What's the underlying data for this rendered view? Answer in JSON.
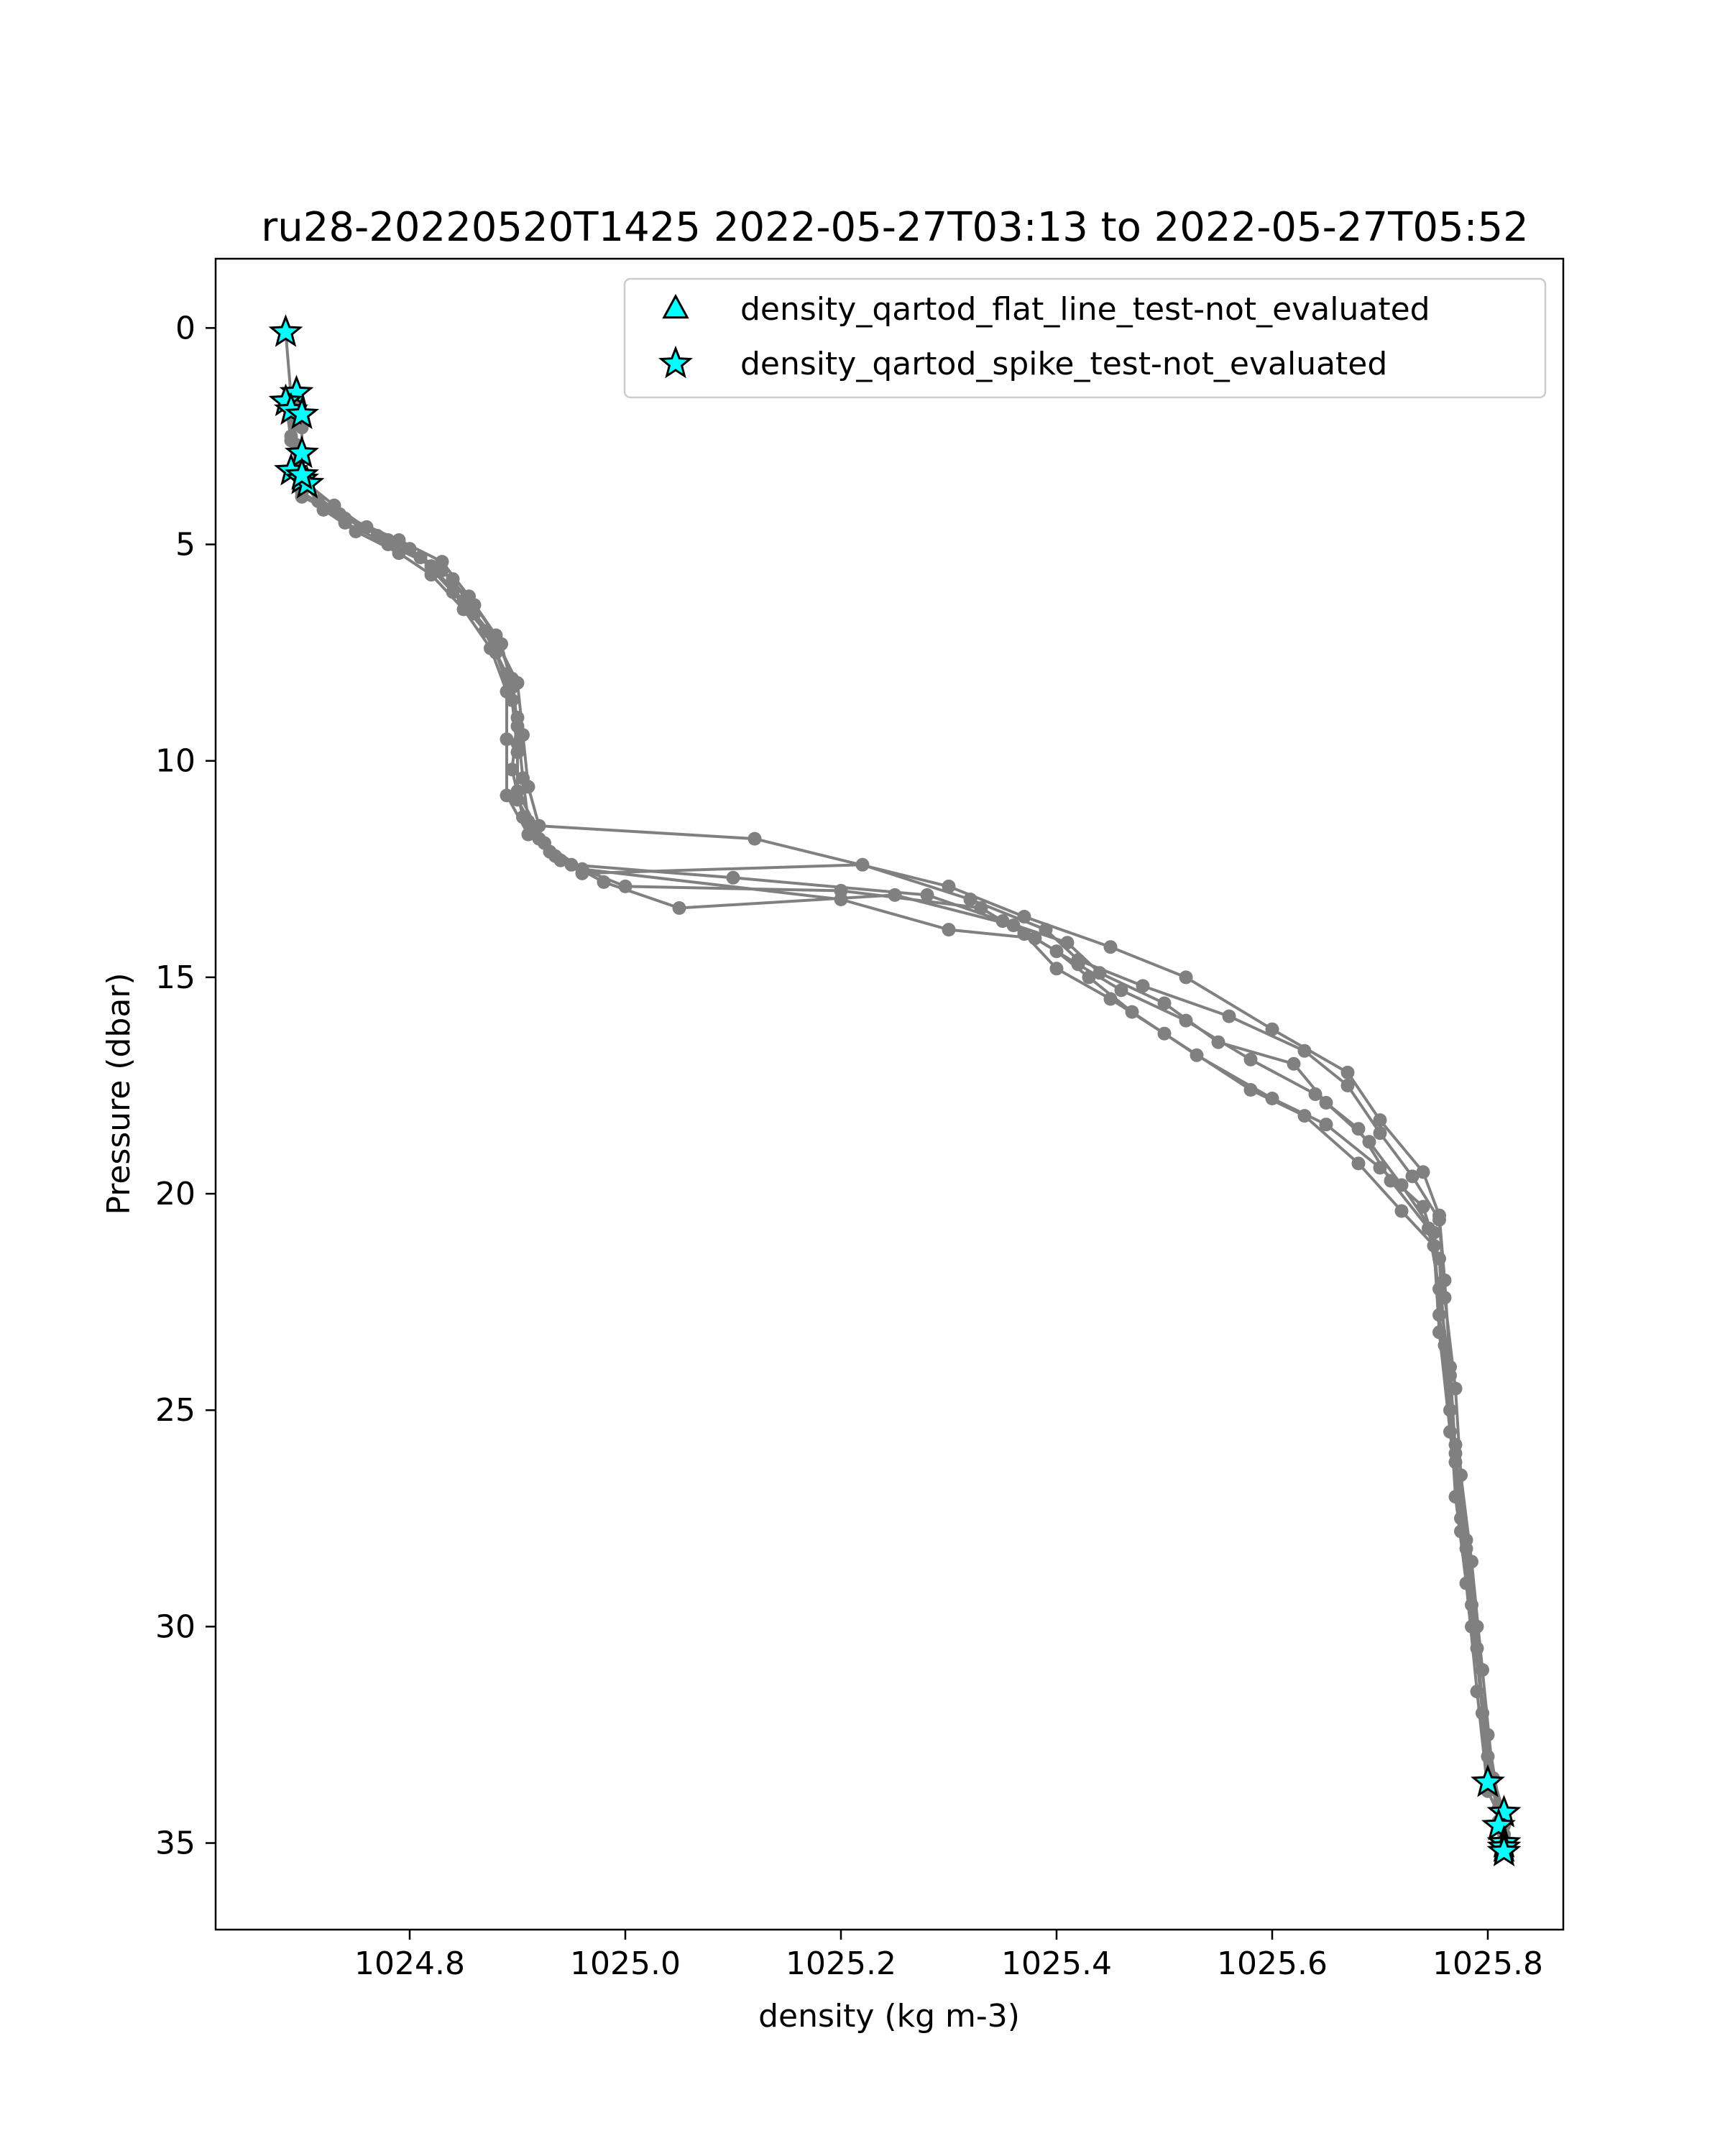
{
  "chart_data": {
    "type": "scatter",
    "title": "ru28-20220520T1425 2022-05-27T03:13 to 2022-05-27T05:52",
    "xlabel": "density (kg m-3)",
    "ylabel": "Pressure (dbar)",
    "xlim": [
      1024.62,
      1025.87
    ],
    "ylim": [
      37,
      -1.6
    ],
    "y_inverted": true,
    "grid": false,
    "legend_position": "upper-right",
    "x_ticks": [
      {
        "value": 1024.8,
        "label": "1024.8"
      },
      {
        "value": 1025.0,
        "label": "1025.0"
      },
      {
        "value": 1025.2,
        "label": "1025.2"
      },
      {
        "value": 1025.4,
        "label": "1025.4"
      },
      {
        "value": 1025.6,
        "label": "1025.6"
      },
      {
        "value": 1025.8,
        "label": "1025.8"
      }
    ],
    "y_ticks": [
      {
        "value": 0,
        "label": "0"
      },
      {
        "value": 5,
        "label": "5"
      },
      {
        "value": 10,
        "label": "10"
      },
      {
        "value": 15,
        "label": "15"
      },
      {
        "value": 20,
        "label": "20"
      },
      {
        "value": 25,
        "label": "25"
      },
      {
        "value": 30,
        "label": "30"
      },
      {
        "value": 35,
        "label": "35"
      }
    ],
    "colors": {
      "profile": "#808080",
      "flag_fill": "#00ffff",
      "flag_edge": "#000000"
    },
    "profiles": [
      [
        [
          1024.685,
          0.1
        ],
        [
          1024.69,
          1.6
        ],
        [
          1024.69,
          2.5
        ],
        [
          1024.695,
          3.2
        ],
        [
          1024.7,
          3.8
        ],
        [
          1024.74,
          4.4
        ],
        [
          1024.78,
          4.9
        ],
        [
          1024.82,
          5.5
        ],
        [
          1024.85,
          6.3
        ],
        [
          1024.88,
          7.2
        ],
        [
          1024.9,
          8.2
        ],
        [
          1024.905,
          9.4
        ],
        [
          1024.91,
          10.6
        ],
        [
          1024.92,
          11.5
        ],
        [
          1025.12,
          11.8
        ],
        [
          1025.3,
          12.9
        ],
        [
          1025.37,
          13.6
        ],
        [
          1025.45,
          14.3
        ],
        [
          1025.52,
          15.0
        ],
        [
          1025.6,
          16.2
        ],
        [
          1025.67,
          17.2
        ],
        [
          1025.7,
          18.3
        ],
        [
          1025.74,
          19.5
        ],
        [
          1025.755,
          20.5
        ],
        [
          1025.76,
          22.0
        ],
        [
          1025.765,
          24.0
        ],
        [
          1025.77,
          26.0
        ],
        [
          1025.78,
          28.0
        ],
        [
          1025.79,
          30.0
        ],
        [
          1025.795,
          32.0
        ],
        [
          1025.8,
          33.6
        ]
      ],
      [
        [
          1024.695,
          1.5
        ],
        [
          1024.7,
          2.3
        ],
        [
          1024.7,
          3.0
        ],
        [
          1024.705,
          3.6
        ],
        [
          1024.73,
          4.1
        ],
        [
          1024.77,
          4.8
        ],
        [
          1024.81,
          5.3
        ],
        [
          1024.84,
          6.1
        ],
        [
          1024.87,
          7.0
        ],
        [
          1024.89,
          8.0
        ],
        [
          1024.9,
          9.0
        ],
        [
          1024.895,
          10.2
        ],
        [
          1024.905,
          11.3
        ],
        [
          1024.93,
          12.1
        ],
        [
          1024.96,
          12.6
        ],
        [
          1025.22,
          12.4
        ],
        [
          1025.32,
          13.2
        ],
        [
          1025.39,
          13.9
        ],
        [
          1025.42,
          14.6
        ],
        [
          1025.48,
          15.2
        ],
        [
          1025.56,
          15.9
        ],
        [
          1025.63,
          16.7
        ],
        [
          1025.67,
          17.5
        ],
        [
          1025.7,
          18.6
        ],
        [
          1025.73,
          19.6
        ],
        [
          1025.755,
          20.6
        ],
        [
          1025.76,
          22.4
        ],
        [
          1025.77,
          24.5
        ],
        [
          1025.775,
          26.5
        ],
        [
          1025.785,
          28.5
        ],
        [
          1025.795,
          31.0
        ],
        [
          1025.805,
          33.5
        ],
        [
          1025.815,
          34.3
        ]
      ],
      [
        [
          1024.685,
          1.7
        ],
        [
          1024.69,
          2.6
        ],
        [
          1024.7,
          3.4
        ],
        [
          1024.7,
          3.9
        ],
        [
          1024.76,
          4.6
        ],
        [
          1024.8,
          5.1
        ],
        [
          1024.84,
          5.8
        ],
        [
          1024.86,
          6.6
        ],
        [
          1024.88,
          7.5
        ],
        [
          1024.895,
          8.6
        ],
        [
          1024.9,
          9.8
        ],
        [
          1024.9,
          10.9
        ],
        [
          1024.92,
          11.8
        ],
        [
          1024.95,
          12.4
        ],
        [
          1025.1,
          12.7
        ],
        [
          1025.28,
          13.1
        ],
        [
          1025.35,
          13.7
        ],
        [
          1025.41,
          14.2
        ],
        [
          1025.44,
          14.9
        ],
        [
          1025.5,
          15.6
        ],
        [
          1025.55,
          16.5
        ],
        [
          1025.62,
          17.0
        ],
        [
          1025.65,
          17.9
        ],
        [
          1025.69,
          18.8
        ],
        [
          1025.72,
          19.8
        ],
        [
          1025.75,
          20.9
        ],
        [
          1025.755,
          22.8
        ],
        [
          1025.765,
          25.0
        ],
        [
          1025.77,
          27.0
        ],
        [
          1025.78,
          29.0
        ],
        [
          1025.79,
          31.5
        ],
        [
          1025.8,
          33.8
        ],
        [
          1025.815,
          34.6
        ]
      ],
      [
        [
          1024.69,
          1.9
        ],
        [
          1024.695,
          2.8
        ],
        [
          1024.7,
          3.5
        ],
        [
          1024.72,
          4.2
        ],
        [
          1024.75,
          4.7
        ],
        [
          1024.79,
          5.2
        ],
        [
          1024.82,
          5.7
        ],
        [
          1024.85,
          6.5
        ],
        [
          1024.875,
          7.4
        ],
        [
          1024.89,
          8.4
        ],
        [
          1024.89,
          9.5
        ],
        [
          1024.89,
          10.8
        ],
        [
          1024.91,
          11.7
        ],
        [
          1024.94,
          12.3
        ],
        [
          1025.0,
          12.9
        ],
        [
          1025.2,
          13.0
        ],
        [
          1025.33,
          13.4
        ],
        [
          1025.37,
          14.0
        ],
        [
          1025.4,
          14.8
        ],
        [
          1025.45,
          15.5
        ],
        [
          1025.5,
          16.3
        ],
        [
          1025.58,
          17.6
        ],
        [
          1025.63,
          18.2
        ],
        [
          1025.68,
          19.3
        ],
        [
          1025.72,
          20.4
        ],
        [
          1025.75,
          21.2
        ],
        [
          1025.755,
          23.2
        ],
        [
          1025.765,
          25.5
        ],
        [
          1025.775,
          27.5
        ],
        [
          1025.785,
          29.5
        ],
        [
          1025.795,
          32.0
        ],
        [
          1025.81,
          34.2
        ],
        [
          1025.815,
          35.0
        ]
      ],
      [
        [
          1024.7,
          2.0
        ],
        [
          1024.7,
          2.9
        ],
        [
          1024.7,
          3.6
        ],
        [
          1024.735,
          4.3
        ],
        [
          1024.79,
          4.9
        ],
        [
          1024.83,
          5.4
        ],
        [
          1024.855,
          6.2
        ],
        [
          1024.88,
          7.1
        ],
        [
          1024.895,
          8.1
        ],
        [
          1024.9,
          9.2
        ],
        [
          1024.905,
          10.4
        ],
        [
          1024.91,
          11.4
        ],
        [
          1024.935,
          12.2
        ],
        [
          1024.98,
          12.8
        ],
        [
          1025.05,
          13.4
        ],
        [
          1025.25,
          13.1
        ],
        [
          1025.36,
          13.8
        ],
        [
          1025.4,
          14.4
        ],
        [
          1025.43,
          15.0
        ],
        [
          1025.47,
          15.8
        ],
        [
          1025.53,
          16.8
        ],
        [
          1025.6,
          17.8
        ],
        [
          1025.65,
          18.4
        ],
        [
          1025.7,
          19.4
        ],
        [
          1025.74,
          20.3
        ],
        [
          1025.755,
          21.5
        ],
        [
          1025.76,
          23.5
        ],
        [
          1025.77,
          25.8
        ],
        [
          1025.775,
          27.8
        ],
        [
          1025.785,
          30.0
        ],
        [
          1025.8,
          32.5
        ],
        [
          1025.815,
          34.8
        ],
        [
          1025.815,
          35.2
        ]
      ],
      [
        [
          1024.69,
          1.8
        ],
        [
          1024.695,
          2.7
        ],
        [
          1024.7,
          3.3
        ],
        [
          1024.715,
          4.0
        ],
        [
          1024.74,
          4.5
        ],
        [
          1024.78,
          5.0
        ],
        [
          1024.83,
          5.6
        ],
        [
          1024.86,
          6.4
        ],
        [
          1024.885,
          7.3
        ],
        [
          1024.895,
          8.3
        ],
        [
          1024.9,
          9.6
        ],
        [
          1024.9,
          10.7
        ],
        [
          1024.925,
          11.9
        ],
        [
          1024.96,
          12.5
        ],
        [
          1025.2,
          13.2
        ],
        [
          1025.3,
          13.9
        ],
        [
          1025.38,
          14.1
        ],
        [
          1025.42,
          14.7
        ],
        [
          1025.46,
          15.3
        ],
        [
          1025.52,
          16.0
        ],
        [
          1025.58,
          16.9
        ],
        [
          1025.64,
          17.7
        ],
        [
          1025.68,
          18.5
        ],
        [
          1025.71,
          19.7
        ],
        [
          1025.745,
          20.8
        ],
        [
          1025.755,
          22.2
        ],
        [
          1025.765,
          24.2
        ],
        [
          1025.77,
          26.2
        ],
        [
          1025.78,
          28.2
        ],
        [
          1025.79,
          30.5
        ],
        [
          1025.8,
          33.0
        ],
        [
          1025.81,
          34.5
        ],
        [
          1025.815,
          35.1
        ]
      ]
    ],
    "series": [
      {
        "name": "density_qartod_flat_line_test-not_evaluated",
        "marker": "triangle",
        "x": [],
        "y": []
      },
      {
        "name": "density_qartod_spike_test-not_evaluated",
        "marker": "star",
        "x": [
          1024.685,
          1024.695,
          1024.685,
          1024.69,
          1024.7,
          1024.7,
          1024.69,
          1024.7,
          1024.705,
          1024.7,
          1025.8,
          1025.815,
          1025.81,
          1025.815,
          1025.815,
          1025.815
        ],
        "y": [
          0.1,
          1.5,
          1.7,
          1.9,
          2.0,
          2.9,
          3.3,
          3.5,
          3.6,
          3.4,
          33.6,
          34.3,
          34.6,
          35.0,
          35.1,
          35.2
        ]
      }
    ]
  }
}
